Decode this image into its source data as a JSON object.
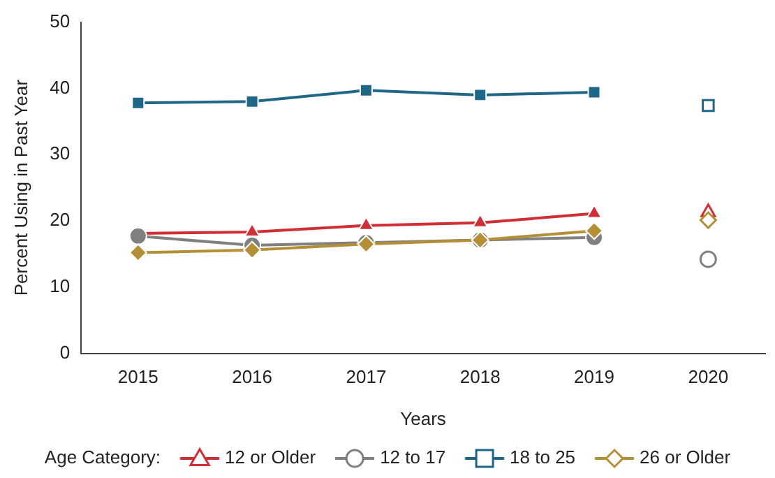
{
  "chart_data": {
    "type": "line",
    "xlabel": "Years",
    "ylabel": "Percent Using in Past Year",
    "legend_title": "Age Category:",
    "categories": [
      "2015",
      "2016",
      "2017",
      "2018",
      "2019",
      "2020"
    ],
    "ylim": [
      0,
      50
    ],
    "yticks": [
      0,
      10,
      20,
      30,
      40,
      50
    ],
    "grid": false,
    "legend": "bottom",
    "line_style": "solid",
    "series": [
      {
        "name": "12 or Older",
        "color": "#d12f35",
        "marker": "triangle",
        "values": [
          18.1,
          18.3,
          19.3,
          19.7,
          21.1,
          null
        ]
      },
      {
        "name": "12 to 17",
        "color": "#808080",
        "marker": "circle",
        "values": [
          17.7,
          16.3,
          16.7,
          17.1,
          17.5,
          null
        ]
      },
      {
        "name": "18 to 25",
        "color": "#1f6787",
        "marker": "square",
        "values": [
          37.8,
          38.0,
          39.7,
          39.0,
          39.4,
          null
        ]
      },
      {
        "name": "26 or Older",
        "color": "#b58f36",
        "marker": "diamond",
        "values": [
          15.2,
          15.6,
          16.5,
          17.1,
          18.5,
          null
        ]
      },
      {
        "type": "scatter",
        "color": "#d12f35",
        "marker": "triangle",
        "values": [
          null,
          null,
          null,
          null,
          null,
          21.3
        ]
      },
      {
        "type": "scatter",
        "color": "#808080",
        "marker": "circle",
        "values": [
          null,
          null,
          null,
          null,
          null,
          14.2
        ]
      },
      {
        "type": "scatter",
        "color": "#1f6787",
        "marker": "square",
        "values": [
          null,
          null,
          null,
          null,
          null,
          37.4
        ]
      },
      {
        "type": "scatter",
        "color": "#b58f36",
        "marker": "diamond",
        "values": [
          null,
          null,
          null,
          null,
          null,
          20.1
        ]
      }
    ]
  }
}
